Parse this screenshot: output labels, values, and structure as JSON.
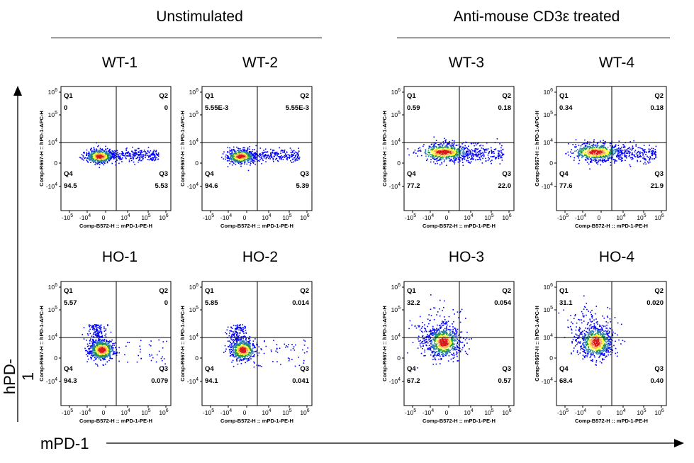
{
  "groups": [
    {
      "title": "Unstimulated"
    },
    {
      "title": "Anti-mouse CD3ε treated"
    }
  ],
  "axes": {
    "x_title": "mPD-1",
    "y_title": "hPD-1",
    "plot_xlabel": "Comp-B572-H :: mPD-1-PE-H",
    "plot_ylabel": "Comp-R667-H :: hPD-1-APC-H",
    "x_ticks": [
      {
        "base": "-10",
        "exp": "5"
      },
      {
        "base": "-10",
        "exp": "4"
      },
      {
        "base": "0",
        "exp": ""
      },
      {
        "base": "10",
        "exp": "4"
      },
      {
        "base": "10",
        "exp": "5"
      },
      {
        "base": "10",
        "exp": "6"
      }
    ],
    "y_ticks": [
      {
        "base": "10",
        "exp": "6"
      },
      {
        "base": "10",
        "exp": "5"
      },
      {
        "base": "10",
        "exp": "4"
      },
      {
        "base": "0",
        "exp": ""
      },
      {
        "base": "-10",
        "exp": "4"
      }
    ]
  },
  "quadrant_names": [
    "Q1",
    "Q2",
    "Q3",
    "Q4"
  ],
  "colors": {
    "high": "#d7191c",
    "mid_high": "#fdae61",
    "mid": "#ffff33",
    "mid_low": "#1a9641",
    "low": "#2c7bb6",
    "sparse": "#0000ff"
  },
  "chart_data": {
    "type": "scatter",
    "plots": [
      {
        "title": "WT-1",
        "q1": "0",
        "q2": "0",
        "q3": "5.53",
        "q4": "94.5"
      },
      {
        "title": "WT-2",
        "q1": "5.55E-3",
        "q2": "5.55E-3",
        "q3": "5.39",
        "q4": "94.6"
      },
      {
        "title": "WT-3",
        "q1": "0.59",
        "q2": "0.18",
        "q3": "22.0",
        "q4": "77.2"
      },
      {
        "title": "WT-4",
        "q1": "0.34",
        "q2": "0.18",
        "q3": "21.9",
        "q4": "77.6"
      },
      {
        "title": "HO-1",
        "q1": "5.57",
        "q2": "0",
        "q3": "0.079",
        "q4": "94.3"
      },
      {
        "title": "HO-2",
        "q1": "5.85",
        "q2": "0.014",
        "q3": "0.041",
        "q4": "94.1"
      },
      {
        "title": "HO-3",
        "q1": "32.2",
        "q2": "0.054",
        "q3": "0.57",
        "q4": "67.2"
      },
      {
        "title": "HO-4",
        "q1": "31.1",
        "q2": "0.020",
        "q3": "0.40",
        "q4": "68.4"
      }
    ]
  }
}
